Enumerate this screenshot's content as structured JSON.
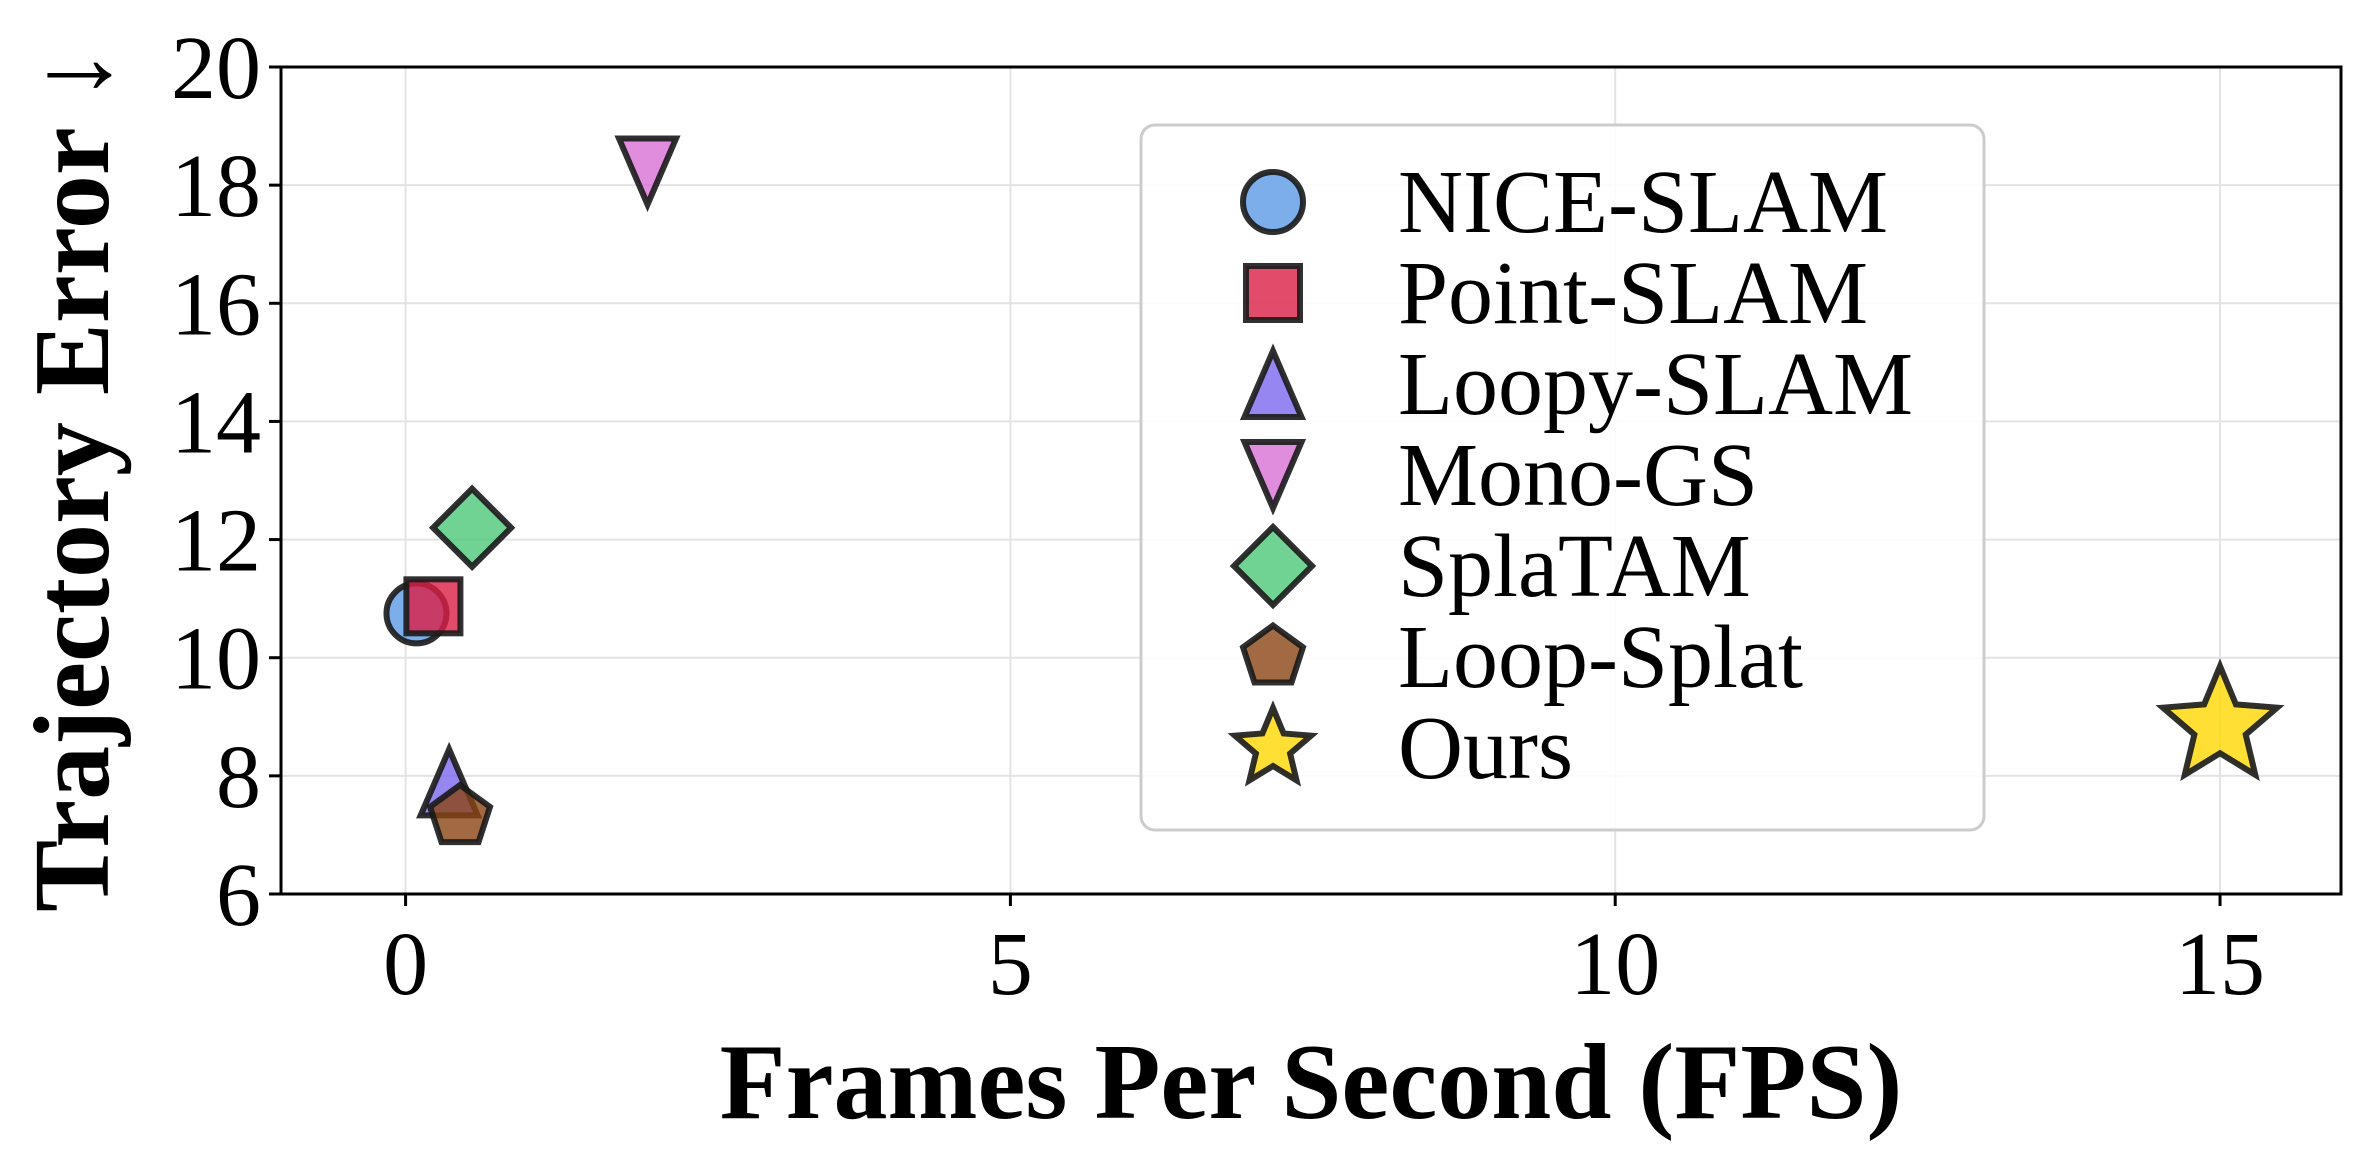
{
  "chart_data": {
    "type": "scatter",
    "title": "",
    "xlabel": "Frames Per Second (FPS)",
    "ylabel": "Trajectory Error ↓",
    "xlim": [
      -1.03,
      16
    ],
    "ylim": [
      6,
      20
    ],
    "xticks": [
      "0",
      "5",
      "10",
      "15"
    ],
    "xtick_values": [
      0,
      5,
      10,
      15
    ],
    "yticks": [
      "6",
      "8",
      "10",
      "12",
      "14",
      "16",
      "18",
      "20"
    ],
    "ytick_values": [
      6,
      8,
      10,
      12,
      14,
      16,
      18,
      20
    ],
    "grid": true,
    "legend_position": "upper-center-right",
    "series": [
      {
        "name": "NICE-SLAM",
        "marker": "circle",
        "color": "#5b9ae6",
        "x": 0.09,
        "y": 10.75
      },
      {
        "name": "Point-SLAM",
        "marker": "square",
        "color": "#dc1e46",
        "x": 0.23,
        "y": 10.87
      },
      {
        "name": "Loopy-SLAM",
        "marker": "triangle-up",
        "color": "#7b68ee",
        "x": 0.36,
        "y": 7.89
      },
      {
        "name": "Mono-GS",
        "marker": "triangle-down",
        "color": "#da70d6",
        "x": 2.0,
        "y": 18.23
      },
      {
        "name": "SplaTAM",
        "marker": "diamond",
        "color": "#4cc878",
        "x": 0.55,
        "y": 12.2
      },
      {
        "name": "Loop-Splat",
        "marker": "pentagon",
        "color": "#8b4513",
        "x": 0.45,
        "y": 7.31
      },
      {
        "name": "Ours",
        "marker": "star",
        "color": "#ffd700",
        "x": 15.0,
        "y": 8.84
      }
    ]
  }
}
